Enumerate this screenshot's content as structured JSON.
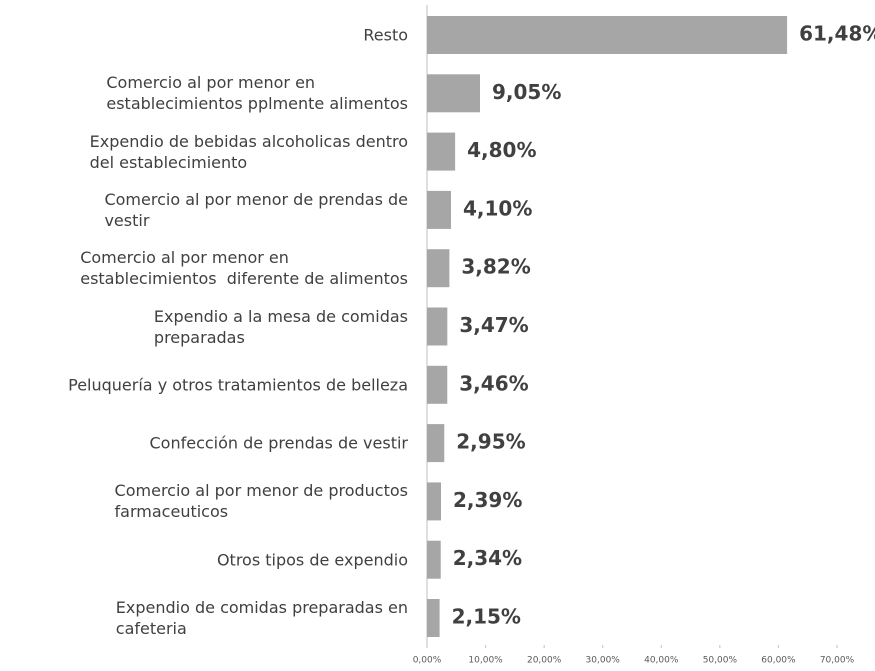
{
  "chart_data": {
    "type": "bar",
    "orientation": "horizontal",
    "categories": [
      "Resto",
      "Comercio al por menor en\nestablecimientos pplmente alimentos",
      "Expendio de bebidas alcoholicas dentro\ndel establecimiento",
      "Comercio al por menor de prendas de\nvestir",
      "Comercio al por menor en\nestablecimientos  diferente de alimentos",
      "Expendio a la mesa de comidas\npreparadas",
      "Peluquería y otros tratamientos de belleza",
      "Confección de prendas de vestir",
      "Comercio al por menor de productos\nfarmaceuticos",
      "Otros tipos de expendio",
      "Expendio de comidas preparadas en\ncafeteria"
    ],
    "values": [
      61.48,
      9.05,
      4.8,
      4.1,
      3.82,
      3.47,
      3.46,
      2.95,
      2.39,
      2.34,
      2.15
    ],
    "value_labels": [
      "61,48%",
      "9,05%",
      "4,80%",
      "4,10%",
      "3,82%",
      "3,47%",
      "3,46%",
      "2,95%",
      "2,39%",
      "2,34%",
      "2,15%"
    ],
    "color": "#a6a6a6",
    "xlim": [
      0,
      70
    ],
    "xticks": [
      {
        "value": 0,
        "label": "0,00%"
      },
      {
        "value": 10,
        "label": "10,00%"
      },
      {
        "value": 20,
        "label": "20,00%"
      },
      {
        "value": 30,
        "label": "30,00%"
      },
      {
        "value": 40,
        "label": "40,00%"
      },
      {
        "value": 50,
        "label": "50,00%"
      },
      {
        "value": 60,
        "label": "60,00%"
      },
      {
        "value": 70,
        "label": "70,00%"
      }
    ]
  }
}
